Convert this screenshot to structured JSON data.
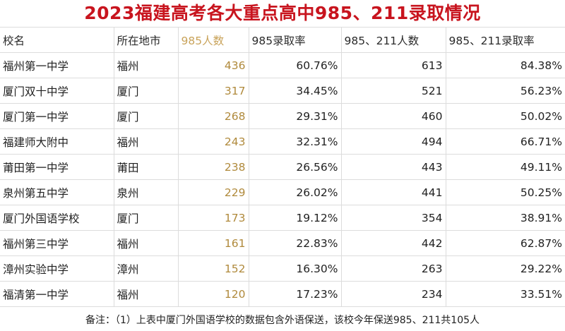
{
  "title": "2023福建高考各大重点高中985、211录取情况",
  "headers": [
    "校名",
    "所在地市",
    "985人数",
    "985录取率",
    "985、211人数",
    "985、211录取率"
  ],
  "rows": [
    {
      "school": "福州第一中学",
      "city": "福州",
      "n985": "436",
      "rate985": "60.76%",
      "n985_211": "613",
      "rate985_211": "84.38%"
    },
    {
      "school": "厦门双十中学",
      "city": "厦门",
      "n985": "317",
      "rate985": "34.45%",
      "n985_211": "521",
      "rate985_211": "56.23%"
    },
    {
      "school": "厦门第一中学",
      "city": "厦门",
      "n985": "268",
      "rate985": "29.31%",
      "n985_211": "460",
      "rate985_211": "50.02%"
    },
    {
      "school": "福建师大附中",
      "city": "福州",
      "n985": "243",
      "rate985": "32.31%",
      "n985_211": "494",
      "rate985_211": "66.71%"
    },
    {
      "school": "莆田第一中学",
      "city": "莆田",
      "n985": "238",
      "rate985": "26.56%",
      "n985_211": "443",
      "rate985_211": "49.11%"
    },
    {
      "school": "泉州第五中学",
      "city": "泉州",
      "n985": "229",
      "rate985": "26.02%",
      "n985_211": "441",
      "rate985_211": "50.25%"
    },
    {
      "school": "厦门外国语学校",
      "city": "厦门",
      "n985": "173",
      "rate985": "19.12%",
      "n985_211": "354",
      "rate985_211": "38.91%"
    },
    {
      "school": "福州第三中学",
      "city": "福州",
      "n985": "161",
      "rate985": "22.83%",
      "n985_211": "442",
      "rate985_211": "62.87%"
    },
    {
      "school": "漳州实验中学",
      "city": "漳州",
      "n985": "152",
      "rate985": "16.30%",
      "n985_211": "263",
      "rate985_211": "29.22%"
    },
    {
      "school": "福清第一中学",
      "city": "福州",
      "n985": "120",
      "rate985": "17.23%",
      "n985_211": "234",
      "rate985_211": "33.51%"
    }
  ],
  "note": "备注：（1）上表中厦门外国语学校的数据包含外语保送，该校今年保送985、211共105人"
}
